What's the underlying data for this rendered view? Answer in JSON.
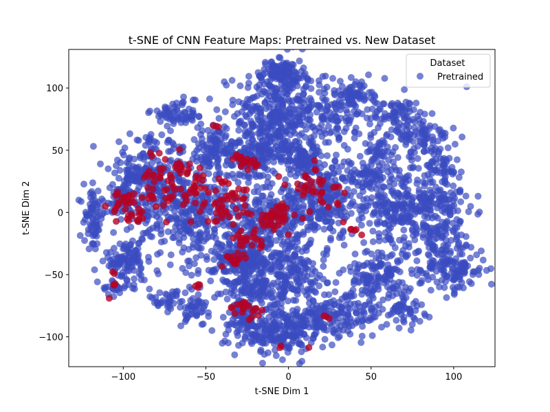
{
  "chart_data": {
    "type": "scatter",
    "title": "t-SNE of CNN Feature Maps: Pretrained vs. New Dataset",
    "xlabel": "t-SNE Dim 1",
    "ylabel": "t-SNE Dim 2",
    "xlim": [
      -133,
      125
    ],
    "ylim": [
      -124,
      131
    ],
    "xticks": [
      -100,
      -50,
      0,
      50,
      100
    ],
    "yticks": [
      -100,
      -50,
      0,
      50,
      100
    ],
    "grid": false,
    "legend": {
      "title": "Dataset",
      "placement": "top-right",
      "entries": [
        {
          "label": "Pretrained",
          "color": "#3b4cc0"
        }
      ]
    },
    "series": [
      {
        "name": "Pretrained",
        "color": "#3b4cc0",
        "alpha": 0.7,
        "clusters": [
          {
            "cx": -8,
            "cy": 80,
            "sx": 12,
            "sy": 22,
            "n": 320
          },
          {
            "cx": -5,
            "cy": 112,
            "sx": 6,
            "sy": 5,
            "n": 90
          },
          {
            "cx": 28,
            "cy": 80,
            "sx": 14,
            "sy": 14,
            "n": 170
          },
          {
            "cx": 40,
            "cy": 95,
            "sx": 4,
            "sy": 5,
            "n": 40
          },
          {
            "cx": 65,
            "cy": 80,
            "sx": 6,
            "sy": 5,
            "n": 60
          },
          {
            "cx": 78,
            "cy": 62,
            "sx": 12,
            "sy": 8,
            "n": 80
          },
          {
            "cx": 55,
            "cy": 48,
            "sx": 5,
            "sy": 6,
            "n": 40
          },
          {
            "cx": 45,
            "cy": 30,
            "sx": 10,
            "sy": 6,
            "n": 70
          },
          {
            "cx": 88,
            "cy": 5,
            "sx": 12,
            "sy": 28,
            "n": 340
          },
          {
            "cx": 63,
            "cy": 5,
            "sx": 10,
            "sy": 12,
            "n": 130
          },
          {
            "cx": 100,
            "cy": -45,
            "sx": 10,
            "sy": 10,
            "n": 110
          },
          {
            "cx": 55,
            "cy": -50,
            "sx": 10,
            "sy": 12,
            "n": 140
          },
          {
            "cx": 38,
            "cy": -80,
            "sx": 10,
            "sy": 10,
            "n": 90
          },
          {
            "cx": 70,
            "cy": -78,
            "sx": 6,
            "sy": 7,
            "n": 50
          },
          {
            "cx": -5,
            "cy": -95,
            "sx": 9,
            "sy": 10,
            "n": 200
          },
          {
            "cx": 20,
            "cy": -85,
            "sx": 8,
            "sy": 8,
            "n": 90
          },
          {
            "cx": -28,
            "cy": -88,
            "sx": 7,
            "sy": 10,
            "n": 90
          },
          {
            "cx": 20,
            "cy": 10,
            "sx": 12,
            "sy": 14,
            "n": 230
          },
          {
            "cx": 10,
            "cy": 42,
            "sx": 8,
            "sy": 7,
            "n": 90
          },
          {
            "cx": -20,
            "cy": 45,
            "sx": 12,
            "sy": 10,
            "n": 160
          },
          {
            "cx": -45,
            "cy": 50,
            "sx": 10,
            "sy": 10,
            "n": 110
          },
          {
            "cx": -65,
            "cy": 80,
            "sx": 9,
            "sy": 5,
            "n": 60
          },
          {
            "cx": -82,
            "cy": 20,
            "sx": 12,
            "sy": 20,
            "n": 300
          },
          {
            "cx": -118,
            "cy": -5,
            "sx": 3,
            "sy": 12,
            "n": 70
          },
          {
            "cx": -103,
            "cy": 10,
            "sx": 4,
            "sy": 6,
            "n": 40
          },
          {
            "cx": -95,
            "cy": 30,
            "sx": 5,
            "sy": 5,
            "n": 35
          },
          {
            "cx": -55,
            "cy": -5,
            "sx": 10,
            "sy": 18,
            "n": 220
          },
          {
            "cx": -25,
            "cy": -40,
            "sx": 10,
            "sy": 9,
            "n": 180
          },
          {
            "cx": -20,
            "cy": -62,
            "sx": 9,
            "sy": 7,
            "n": 110
          },
          {
            "cx": 5,
            "cy": -50,
            "sx": 9,
            "sy": 12,
            "n": 140
          },
          {
            "cx": -15,
            "cy": -10,
            "sx": 15,
            "sy": 14,
            "n": 260
          },
          {
            "cx": -100,
            "cy": -40,
            "sx": 6,
            "sy": 8,
            "n": 60
          },
          {
            "cx": -75,
            "cy": -70,
            "sx": 5,
            "sy": 4,
            "n": 30
          },
          {
            "cx": -58,
            "cy": -75,
            "sx": 5,
            "sy": 8,
            "n": 50
          },
          {
            "cx": -95,
            "cy": -45,
            "sx": 6,
            "sy": 8,
            "n": 40
          },
          {
            "cx": -105,
            "cy": -60,
            "sx": 4,
            "sy": 3,
            "n": 20
          }
        ]
      },
      {
        "name": "",
        "color": "#b40426",
        "alpha": 0.8,
        "clusters": [
          {
            "cx": -8,
            "cy": -3,
            "sx": 5,
            "sy": 5,
            "n": 45
          },
          {
            "cx": -22,
            "cy": 40,
            "sx": 3,
            "sy": 2,
            "n": 14
          },
          {
            "cx": -30,
            "cy": 45,
            "sx": 3,
            "sy": 3,
            "n": 8
          },
          {
            "cx": -35,
            "cy": 10,
            "sx": 7,
            "sy": 10,
            "n": 40
          },
          {
            "cx": -55,
            "cy": 15,
            "sx": 6,
            "sy": 8,
            "n": 30
          },
          {
            "cx": -75,
            "cy": 25,
            "sx": 8,
            "sy": 12,
            "n": 45
          },
          {
            "cx": -95,
            "cy": 3,
            "sx": 6,
            "sy": 7,
            "n": 30
          },
          {
            "cx": -100,
            "cy": 12,
            "sx": 3,
            "sy": 3,
            "n": 10
          },
          {
            "cx": -25,
            "cy": -23,
            "sx": 5,
            "sy": 4,
            "n": 20
          },
          {
            "cx": -35,
            "cy": -38,
            "sx": 5,
            "sy": 3,
            "n": 16
          },
          {
            "cx": -28,
            "cy": -75,
            "sx": 4,
            "sy": 3,
            "n": 15
          },
          {
            "cx": -20,
            "cy": -82,
            "sx": 3,
            "sy": 4,
            "n": 6
          },
          {
            "cx": 10,
            "cy": 22,
            "sx": 8,
            "sy": 6,
            "n": 22
          },
          {
            "cx": 25,
            "cy": 10,
            "sx": 8,
            "sy": 8,
            "n": 16
          },
          {
            "cx": 42,
            "cy": -12,
            "sx": 4,
            "sy": 4,
            "n": 6
          },
          {
            "cx": -105,
            "cy": -55,
            "sx": 2,
            "sy": 6,
            "n": 6
          },
          {
            "cx": -55,
            "cy": -55,
            "sx": 2,
            "sy": 5,
            "n": 4
          },
          {
            "cx": 23,
            "cy": -85,
            "sx": 1,
            "sy": 1,
            "n": 3
          },
          {
            "cx": -5,
            "cy": -107,
            "sx": 1,
            "sy": 1,
            "n": 2
          },
          {
            "cx": 12,
            "cy": -109,
            "sx": 1,
            "sy": 1,
            "n": 1
          },
          {
            "cx": -65,
            "cy": 35,
            "sx": 3,
            "sy": 3,
            "n": 8
          },
          {
            "cx": -45,
            "cy": 68,
            "sx": 2,
            "sy": 2,
            "n": 3
          }
        ]
      }
    ]
  }
}
